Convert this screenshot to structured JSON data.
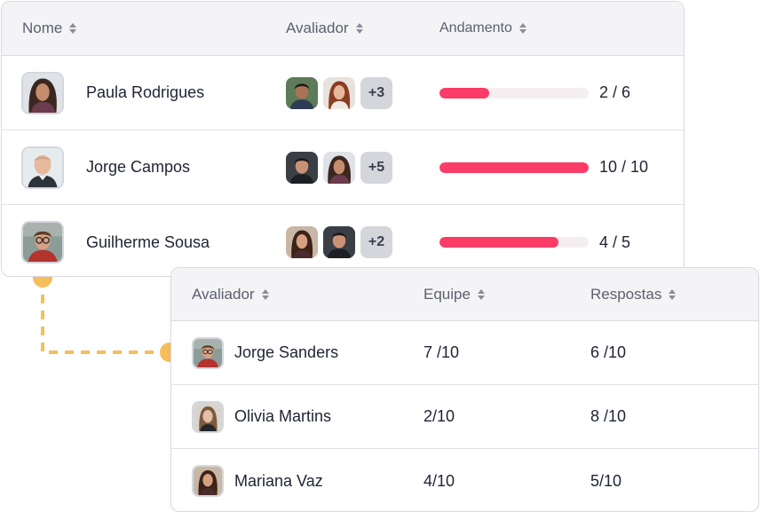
{
  "colors": {
    "accent": "#fb3c66",
    "connector": "#f6bd5c",
    "track": "#f5eef0"
  },
  "top_table": {
    "headers": {
      "name": "Nome",
      "evaluator": "Avaliador",
      "progress": "Andamento"
    },
    "rows": [
      {
        "name": "Paula Rodrigues",
        "avatar": "woman-curly-hair",
        "evaluators": [
          "man-avatar",
          "woman-avatar"
        ],
        "extra": "+3",
        "progress_label": "2 / 6",
        "progress_fraction": 0.333
      },
      {
        "name": "Jorge Campos",
        "avatar": "man-bald",
        "evaluators": [
          "man-avatar",
          "woman-avatar"
        ],
        "extra": "+5",
        "progress_label": "10 / 10",
        "progress_fraction": 1.0
      },
      {
        "name": "Guilherme Sousa",
        "avatar": "man-glasses",
        "evaluators": [
          "woman-avatar",
          "man-avatar"
        ],
        "extra": "+2",
        "progress_label": "4 / 5",
        "progress_fraction": 0.8
      }
    ]
  },
  "detail_table": {
    "headers": {
      "evaluator": "Avaliador",
      "team": "Equipe",
      "answers": "Respostas"
    },
    "rows": [
      {
        "name": "Jorge Sanders",
        "avatar": "man-glasses",
        "team": "7 /10",
        "answers": "6 /10"
      },
      {
        "name": "Olivia Martins",
        "avatar": "woman-blonde",
        "team": "2/10",
        "answers": "8 /10"
      },
      {
        "name": "Mariana Vaz",
        "avatar": "woman-dark-hair",
        "team": "4/10",
        "answers": "5/10"
      }
    ]
  }
}
